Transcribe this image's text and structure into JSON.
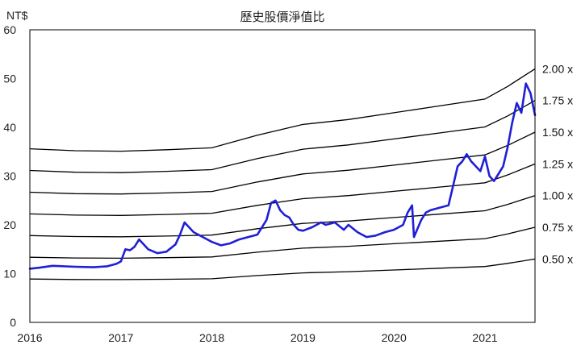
{
  "chart_data": {
    "type": "line",
    "title": "歷史股價淨值比",
    "y_unit_label": "NT$",
    "xlim": [
      2016.0,
      2021.55
    ],
    "ylim": [
      0,
      60
    ],
    "x_ticks": [
      2016,
      2017,
      2018,
      2019,
      2020,
      2021
    ],
    "x_tick_labels": [
      "2016",
      "2017",
      "2018",
      "2019",
      "2020",
      "2021"
    ],
    "y_ticks": [
      0,
      10,
      20,
      30,
      40,
      50,
      60
    ],
    "y_tick_labels": [
      "0",
      "10",
      "20",
      "30",
      "40",
      "50",
      "60"
    ],
    "bands": [
      {
        "label": "2.00 x",
        "multiple": 2.0
      },
      {
        "label": "1.75 x",
        "multiple": 1.75
      },
      {
        "label": "1.50 x",
        "multiple": 1.5
      },
      {
        "label": "1.25 x",
        "multiple": 1.25
      },
      {
        "label": "1.00 x",
        "multiple": 1.0
      },
      {
        "label": "0.75 x",
        "multiple": 0.75
      },
      {
        "label": "0.50 x",
        "multiple": 0.5
      }
    ],
    "book_value": {
      "x": [
        2016.0,
        2016.5,
        2017.0,
        2017.5,
        2018.0,
        2018.5,
        2019.0,
        2019.5,
        2020.0,
        2020.5,
        2021.0,
        2021.25,
        2021.55
      ],
      "y": [
        17.8,
        17.6,
        17.55,
        17.7,
        17.9,
        19.2,
        20.3,
        20.8,
        21.5,
        22.2,
        22.9,
        24.2,
        26.0
      ]
    },
    "price": {
      "x": [
        2016.0,
        2016.1,
        2016.25,
        2016.5,
        2016.7,
        2016.85,
        2016.95,
        2017.0,
        2017.05,
        2017.1,
        2017.15,
        2017.2,
        2017.3,
        2017.4,
        2017.5,
        2017.6,
        2017.65,
        2017.7,
        2017.8,
        2017.9,
        2018.0,
        2018.1,
        2018.2,
        2018.3,
        2018.4,
        2018.5,
        2018.6,
        2018.65,
        2018.7,
        2018.75,
        2018.8,
        2018.85,
        2018.9,
        2018.95,
        2019.0,
        2019.1,
        2019.2,
        2019.25,
        2019.35,
        2019.45,
        2019.5,
        2019.6,
        2019.7,
        2019.8,
        2019.9,
        2020.0,
        2020.1,
        2020.15,
        2020.2,
        2020.22,
        2020.3,
        2020.35,
        2020.4,
        2020.5,
        2020.6,
        2020.65,
        2020.7,
        2020.75,
        2020.8,
        2020.85,
        2020.9,
        2020.95,
        2021.0,
        2021.05,
        2021.1,
        2021.15,
        2021.2,
        2021.25,
        2021.3,
        2021.35,
        2021.4,
        2021.45,
        2021.5,
        2021.55
      ],
      "y": [
        11.0,
        11.2,
        11.6,
        11.4,
        11.3,
        11.5,
        12.0,
        12.5,
        15.0,
        14.8,
        15.5,
        17.0,
        15.0,
        14.2,
        14.5,
        16.0,
        18.0,
        20.5,
        18.5,
        17.5,
        16.5,
        15.8,
        16.2,
        17.0,
        17.5,
        18.0,
        21.0,
        24.5,
        25.0,
        23.0,
        22.0,
        21.5,
        20.0,
        19.0,
        18.8,
        19.5,
        20.5,
        20.0,
        20.5,
        19.0,
        20.0,
        18.5,
        17.5,
        17.8,
        18.5,
        19.0,
        20.0,
        22.5,
        24.0,
        17.5,
        21.0,
        22.5,
        23.0,
        23.5,
        24.0,
        28.0,
        32.0,
        33.0,
        34.5,
        33.0,
        32.0,
        31.0,
        34.0,
        30.0,
        29.0,
        30.5,
        32.0,
        36.0,
        41.0,
        45.0,
        43.0,
        49.0,
        47.0,
        42.5
      ]
    },
    "colors": {
      "price": "#1f1fd6",
      "bands": "#000000",
      "axis": "#000000"
    },
    "grid": false
  }
}
